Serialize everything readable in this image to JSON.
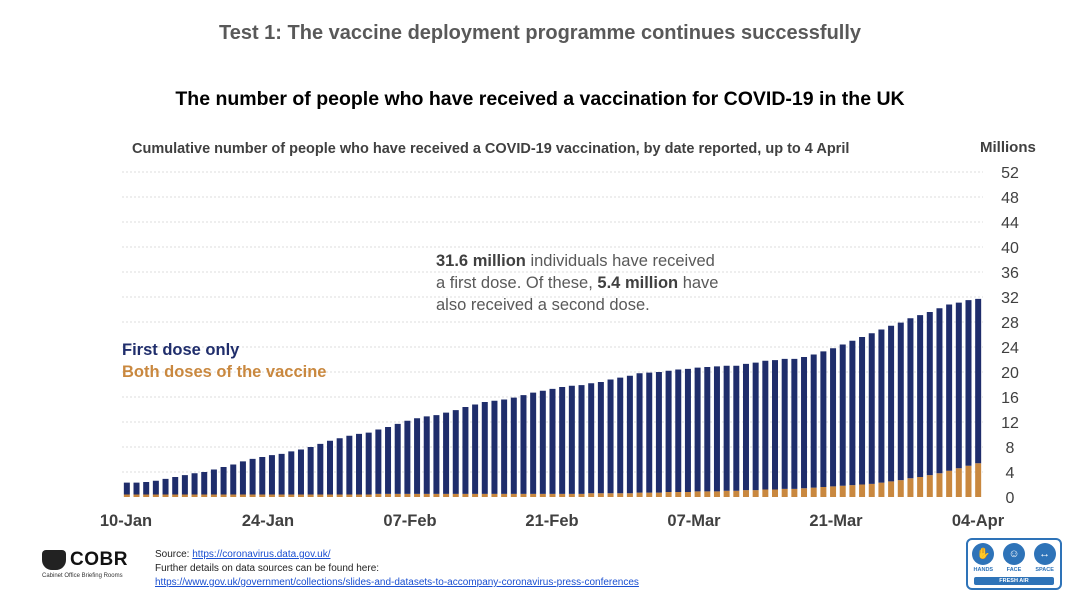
{
  "header": {
    "test_title": "Test 1: The vaccine deployment programme continues successfully",
    "subtitle": "The number of people who have received a vaccination for COVID-19 in the UK"
  },
  "annotation": {
    "line1_bold": "31.6 million",
    "line1_rest": " individuals have received",
    "line2_start": "a first dose. Of these, ",
    "line2_bold": "5.4 million",
    "line2_rest": " have",
    "line3": "also received a second dose."
  },
  "colors": {
    "first_dose": "#1f2d6b",
    "both_doses": "#c9883f",
    "grid": "#dddddd",
    "axis_text": "#404040"
  },
  "chart_data": {
    "type": "bar",
    "stacked": true,
    "title": "Cumulative number of people who have received a COVID-19 vaccination, by date reported, up to 4 April",
    "y_unit_label": "Millions",
    "ylim": [
      0,
      52
    ],
    "y_ticks": [
      0,
      4,
      8,
      12,
      16,
      20,
      24,
      28,
      32,
      36,
      40,
      44,
      48,
      52
    ],
    "x_tick_labels": [
      "10-Jan",
      "24-Jan",
      "07-Feb",
      "21-Feb",
      "07-Mar",
      "21-Mar",
      "04-Apr"
    ],
    "date_range": [
      "10-Jan",
      "04-Apr"
    ],
    "grid": true,
    "legend_position": "left-middle",
    "series": [
      {
        "name": "First dose only",
        "color": "#1f2d6b",
        "values": [
          1.9,
          1.9,
          2.0,
          2.2,
          2.5,
          2.8,
          3.1,
          3.4,
          3.6,
          4.0,
          4.4,
          4.8,
          5.3,
          5.7,
          6.0,
          6.3,
          6.5,
          6.9,
          7.2,
          7.6,
          8.1,
          8.6,
          9.0,
          9.4,
          9.7,
          9.9,
          10.3,
          10.7,
          11.2,
          11.7,
          12.1,
          12.4,
          12.6,
          13.0,
          13.4,
          13.9,
          14.3,
          14.7,
          14.9,
          15.1,
          15.4,
          15.8,
          16.2,
          16.5,
          16.8,
          17.1,
          17.3,
          17.4,
          17.6,
          17.8,
          18.2,
          18.5,
          18.8,
          19.1,
          19.2,
          19.3,
          19.4,
          19.6,
          19.7,
          19.8,
          19.9,
          20.0,
          20.0,
          20.0,
          20.2,
          20.4,
          20.6,
          20.7,
          20.8,
          20.8,
          21.0,
          21.3,
          21.7,
          22.1,
          22.6,
          23.1,
          23.6,
          24.1,
          24.5,
          24.9,
          25.2,
          25.6,
          25.9,
          26.1,
          26.4,
          26.6,
          26.5,
          26.5,
          26.3
        ],
        "values_note_first_dose_total_on_last_day": 31.6
      },
      {
        "name": "Both doses of the vaccine",
        "color": "#c9883f",
        "values": [
          0.4,
          0.4,
          0.4,
          0.4,
          0.4,
          0.4,
          0.4,
          0.4,
          0.4,
          0.4,
          0.4,
          0.4,
          0.4,
          0.4,
          0.4,
          0.4,
          0.4,
          0.4,
          0.4,
          0.4,
          0.4,
          0.4,
          0.4,
          0.4,
          0.4,
          0.4,
          0.5,
          0.5,
          0.5,
          0.5,
          0.5,
          0.5,
          0.5,
          0.5,
          0.5,
          0.5,
          0.5,
          0.5,
          0.5,
          0.5,
          0.5,
          0.5,
          0.5,
          0.5,
          0.5,
          0.5,
          0.5,
          0.5,
          0.6,
          0.6,
          0.6,
          0.6,
          0.6,
          0.7,
          0.7,
          0.7,
          0.8,
          0.8,
          0.8,
          0.9,
          0.9,
          0.9,
          1.0,
          1.0,
          1.1,
          1.1,
          1.2,
          1.2,
          1.3,
          1.3,
          1.4,
          1.5,
          1.6,
          1.7,
          1.8,
          1.9,
          2.0,
          2.1,
          2.3,
          2.5,
          2.7,
          3.0,
          3.2,
          3.5,
          3.8,
          4.2,
          4.6,
          5.0,
          5.4
        ]
      }
    ]
  },
  "legend": {
    "first_dose": "First dose only",
    "both_doses": "Both doses of the vaccine"
  },
  "footer": {
    "logo_text": "COBR",
    "logo_subtext": "Cabinet Office Briefing Rooms",
    "source_prefix": "Source: ",
    "source_link": "https://coronavirus.data.gov.uk/",
    "further_details": "Further details on data sources can be found here:",
    "details_link": "https://www.gov.uk/government/collections/slides-and-datasets-to-accompany-coronavirus-press-conferences"
  },
  "hands_face_space": {
    "hands": "HANDS",
    "face": "FACE",
    "space": "SPACE",
    "fresh_air": "FRESH AIR"
  }
}
